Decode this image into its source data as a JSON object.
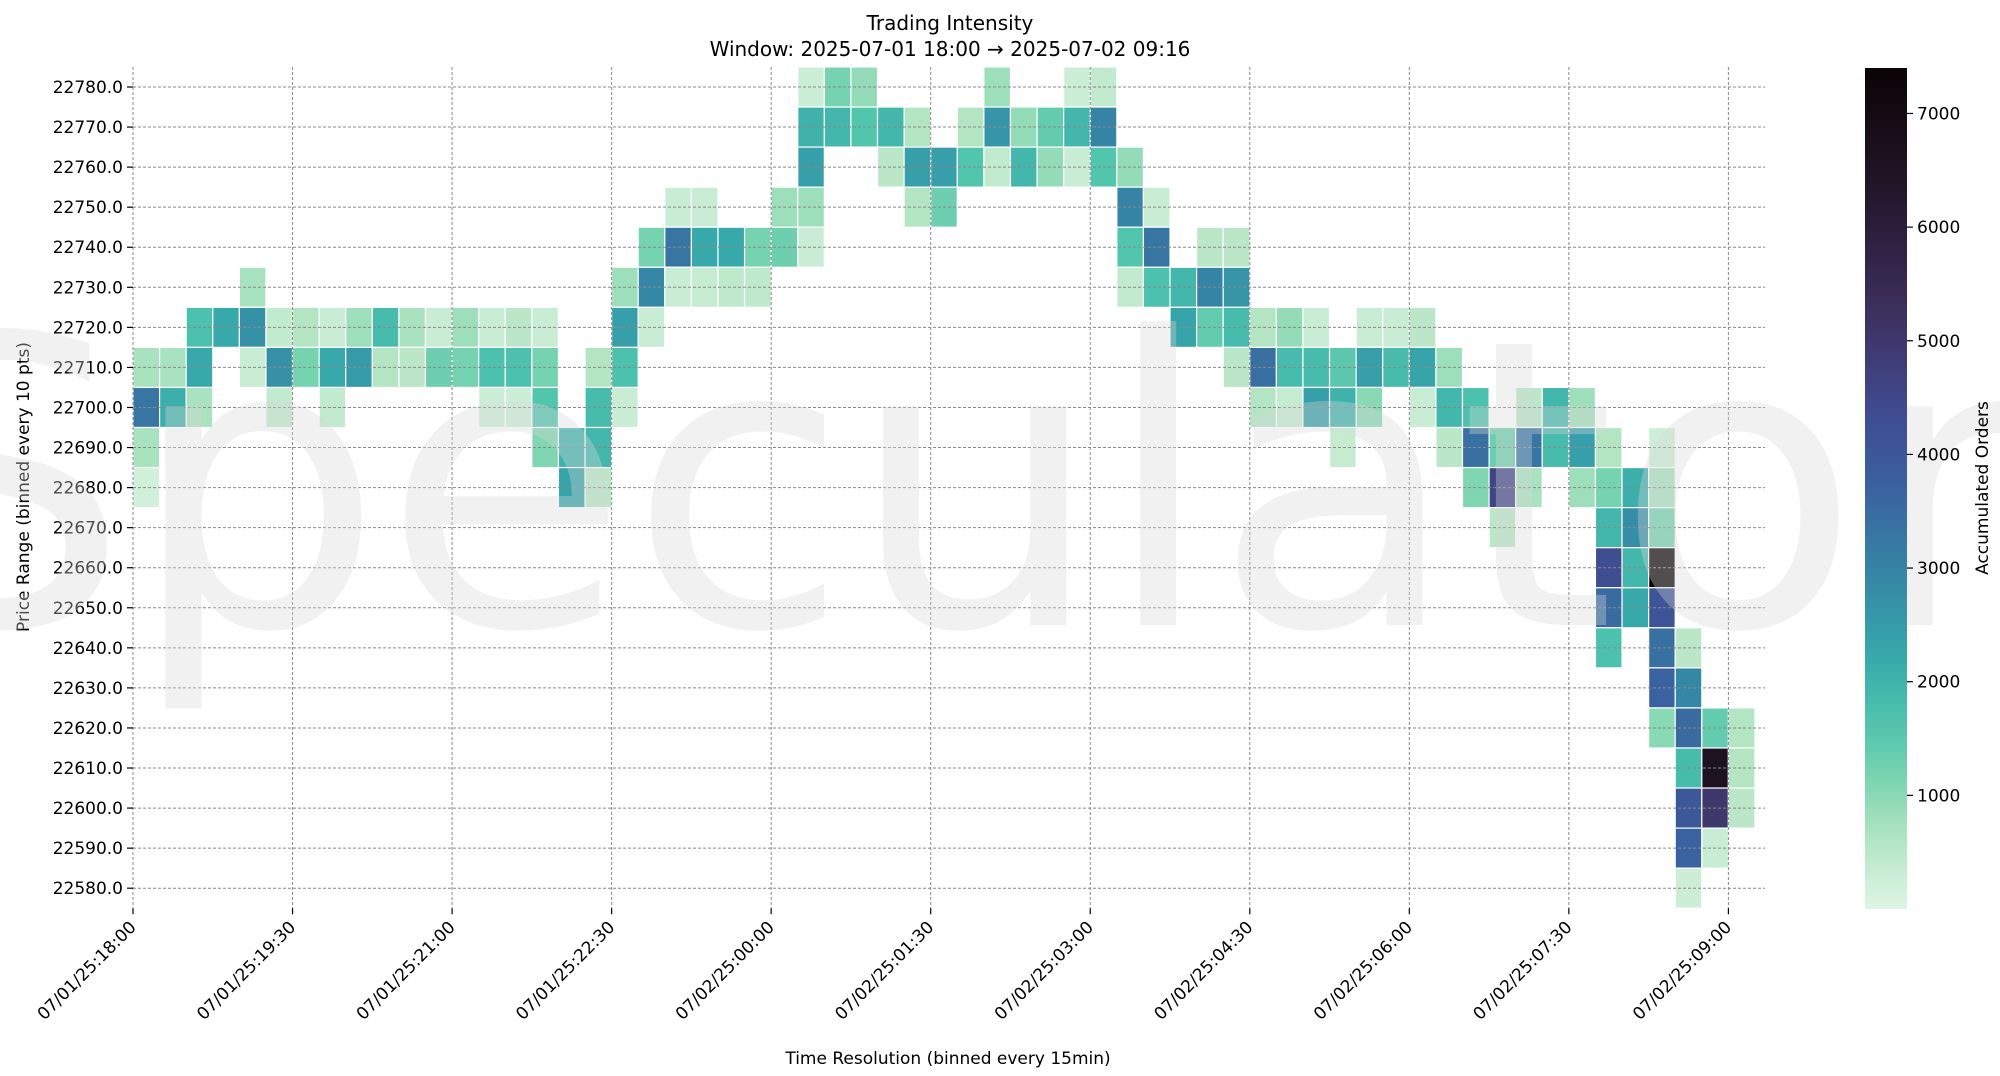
{
  "chart_data": {
    "type": "heatmap",
    "title": "Trading Intensity",
    "subtitle": "Window: 2025-07-01 18:00 → 2025-07-02 09:16",
    "xlabel": "Time Resolution (binned every 15min)",
    "ylabel": "Price Range (binned every 10 pts)",
    "colorbar_label": "Accumulated Orders",
    "watermark": "Speculator",
    "colormap": "mako_r",
    "value_range": [
      0,
      7400
    ],
    "colorbar_ticks": [
      1000,
      2000,
      3000,
      4000,
      5000,
      6000,
      7000
    ],
    "x_bin_minutes": 15,
    "x_bin_count": 61,
    "xticks": [
      {
        "bin": 0,
        "label": "07/01/25:18:00"
      },
      {
        "bin": 6,
        "label": "07/01/25:19:30"
      },
      {
        "bin": 12,
        "label": "07/01/25:21:00"
      },
      {
        "bin": 18,
        "label": "07/01/25:22:30"
      },
      {
        "bin": 24,
        "label": "07/02/25:00:00"
      },
      {
        "bin": 30,
        "label": "07/02/25:01:30"
      },
      {
        "bin": 36,
        "label": "07/02/25:03:00"
      },
      {
        "bin": 42,
        "label": "07/02/25:04:30"
      },
      {
        "bin": 48,
        "label": "07/02/25:06:00"
      },
      {
        "bin": 54,
        "label": "07/02/25:07:30"
      },
      {
        "bin": 60,
        "label": "07/02/25:09:00"
      }
    ],
    "yticks": [
      "22780.0",
      "22770.0",
      "22760.0",
      "22750.0",
      "22740.0",
      "22730.0",
      "22720.0",
      "22710.0",
      "22700.0",
      "22690.0",
      "22680.0",
      "22670.0",
      "22660.0",
      "22650.0",
      "22640.0",
      "22630.0",
      "22620.0",
      "22610.0",
      "22600.0",
      "22590.0",
      "22580.0"
    ],
    "y_range": [
      22580,
      22780
    ],
    "grid": true,
    "cells_format": [
      "time_bin",
      "price",
      "orders"
    ],
    "cells": [
      [
        0,
        22710,
        700
      ],
      [
        0,
        22700,
        3300
      ],
      [
        0,
        22690,
        700
      ],
      [
        0,
        22680,
        200
      ],
      [
        1,
        22710,
        700
      ],
      [
        1,
        22700,
        2100
      ],
      [
        2,
        22720,
        1700
      ],
      [
        2,
        22710,
        2200
      ],
      [
        2,
        22700,
        700
      ],
      [
        3,
        22720,
        2200
      ],
      [
        4,
        22730,
        700
      ],
      [
        4,
        22720,
        2700
      ],
      [
        4,
        22710,
        300
      ],
      [
        5,
        22720,
        400
      ],
      [
        5,
        22710,
        2700
      ],
      [
        5,
        22700,
        400
      ],
      [
        6,
        22720,
        600
      ],
      [
        6,
        22710,
        1200
      ],
      [
        7,
        22720,
        300
      ],
      [
        7,
        22710,
        2200
      ],
      [
        7,
        22700,
        400
      ],
      [
        8,
        22720,
        800
      ],
      [
        8,
        22710,
        2500
      ],
      [
        9,
        22720,
        1800
      ],
      [
        9,
        22710,
        600
      ],
      [
        10,
        22720,
        700
      ],
      [
        10,
        22710,
        500
      ],
      [
        11,
        22720,
        300
      ],
      [
        11,
        22710,
        1300
      ],
      [
        12,
        22720,
        800
      ],
      [
        12,
        22710,
        1200
      ],
      [
        13,
        22720,
        300
      ],
      [
        13,
        22710,
        1700
      ],
      [
        13,
        22700,
        250
      ],
      [
        14,
        22720,
        500
      ],
      [
        14,
        22710,
        1700
      ],
      [
        14,
        22700,
        250
      ],
      [
        15,
        22720,
        300
      ],
      [
        15,
        22710,
        1200
      ],
      [
        15,
        22700,
        1600
      ],
      [
        15,
        22690,
        1100
      ],
      [
        16,
        22690,
        2000
      ],
      [
        16,
        22680,
        2300
      ],
      [
        17,
        22710,
        600
      ],
      [
        17,
        22700,
        1800
      ],
      [
        17,
        22690,
        1900
      ],
      [
        17,
        22680,
        500
      ],
      [
        18,
        22730,
        800
      ],
      [
        18,
        22720,
        2400
      ],
      [
        18,
        22710,
        1700
      ],
      [
        18,
        22700,
        300
      ],
      [
        19,
        22740,
        1200
      ],
      [
        19,
        22730,
        2900
      ],
      [
        19,
        22720,
        300
      ],
      [
        20,
        22750,
        300
      ],
      [
        20,
        22740,
        3300
      ],
      [
        20,
        22730,
        300
      ],
      [
        21,
        22750,
        300
      ],
      [
        21,
        22740,
        2200
      ],
      [
        21,
        22730,
        350
      ],
      [
        22,
        22740,
        2200
      ],
      [
        22,
        22730,
        450
      ],
      [
        23,
        22740,
        1200
      ],
      [
        23,
        22730,
        450
      ],
      [
        24,
        22750,
        800
      ],
      [
        24,
        22740,
        1300
      ],
      [
        25,
        22780,
        250
      ],
      [
        25,
        22770,
        2000
      ],
      [
        25,
        22760,
        2400
      ],
      [
        25,
        22750,
        800
      ],
      [
        25,
        22740,
        300
      ],
      [
        26,
        22780,
        1200
      ],
      [
        26,
        22770,
        1900
      ],
      [
        27,
        22780,
        900
      ],
      [
        27,
        22770,
        1600
      ],
      [
        28,
        22770,
        1900
      ],
      [
        28,
        22760,
        500
      ],
      [
        29,
        22770,
        600
      ],
      [
        29,
        22760,
        2400
      ],
      [
        29,
        22750,
        600
      ],
      [
        30,
        22760,
        2400
      ],
      [
        30,
        22750,
        1300
      ],
      [
        31,
        22770,
        600
      ],
      [
        31,
        22760,
        1600
      ],
      [
        32,
        22780,
        800
      ],
      [
        32,
        22770,
        2600
      ],
      [
        32,
        22760,
        400
      ],
      [
        33,
        22770,
        900
      ],
      [
        33,
        22760,
        1900
      ],
      [
        34,
        22770,
        1400
      ],
      [
        34,
        22760,
        900
      ],
      [
        35,
        22780,
        250
      ],
      [
        35,
        22770,
        1900
      ],
      [
        35,
        22760,
        300
      ],
      [
        36,
        22780,
        400
      ],
      [
        36,
        22770,
        3000
      ],
      [
        36,
        22760,
        1600
      ],
      [
        37,
        22760,
        900
      ],
      [
        37,
        22750,
        3000
      ],
      [
        37,
        22740,
        1600
      ],
      [
        37,
        22730,
        400
      ],
      [
        38,
        22750,
        300
      ],
      [
        38,
        22740,
        3300
      ],
      [
        38,
        22730,
        1700
      ],
      [
        39,
        22730,
        1900
      ],
      [
        39,
        22720,
        2300
      ],
      [
        40,
        22740,
        500
      ],
      [
        40,
        22730,
        3000
      ],
      [
        40,
        22720,
        1400
      ],
      [
        41,
        22740,
        500
      ],
      [
        41,
        22730,
        2600
      ],
      [
        41,
        22720,
        1800
      ],
      [
        41,
        22710,
        500
      ],
      [
        42,
        22720,
        600
      ],
      [
        42,
        22710,
        3400
      ],
      [
        42,
        22700,
        600
      ],
      [
        43,
        22720,
        900
      ],
      [
        43,
        22710,
        1800
      ],
      [
        43,
        22700,
        350
      ],
      [
        44,
        22720,
        300
      ],
      [
        44,
        22710,
        1800
      ],
      [
        44,
        22700,
        2400
      ],
      [
        45,
        22710,
        1500
      ],
      [
        45,
        22700,
        2000
      ],
      [
        45,
        22690,
        350
      ],
      [
        46,
        22720,
        300
      ],
      [
        46,
        22710,
        2400
      ],
      [
        46,
        22700,
        1000
      ],
      [
        47,
        22720,
        300
      ],
      [
        47,
        22710,
        1800
      ],
      [
        48,
        22720,
        500
      ],
      [
        48,
        22710,
        2300
      ],
      [
        48,
        22700,
        300
      ],
      [
        49,
        22710,
        800
      ],
      [
        49,
        22700,
        1900
      ],
      [
        49,
        22690,
        500
      ],
      [
        50,
        22700,
        1700
      ],
      [
        50,
        22690,
        3400
      ],
      [
        50,
        22680,
        1100
      ],
      [
        51,
        22690,
        1300
      ],
      [
        51,
        22680,
        4600
      ],
      [
        51,
        22670,
        500
      ],
      [
        52,
        22700,
        500
      ],
      [
        52,
        22690,
        3300
      ],
      [
        52,
        22680,
        700
      ],
      [
        53,
        22700,
        1900
      ],
      [
        53,
        22690,
        1800
      ],
      [
        54,
        22700,
        800
      ],
      [
        54,
        22690,
        2400
      ],
      [
        54,
        22680,
        800
      ],
      [
        55,
        22690,
        600
      ],
      [
        55,
        22680,
        1200
      ],
      [
        55,
        22670,
        1900
      ],
      [
        55,
        22660,
        4300
      ],
      [
        55,
        22650,
        3500
      ],
      [
        55,
        22640,
        1700
      ],
      [
        56,
        22680,
        2100
      ],
      [
        56,
        22670,
        2800
      ],
      [
        56,
        22660,
        1900
      ],
      [
        56,
        22650,
        2200
      ],
      [
        57,
        22690,
        250
      ],
      [
        57,
        22680,
        700
      ],
      [
        57,
        22670,
        1200
      ],
      [
        57,
        22660,
        7400
      ],
      [
        57,
        22650,
        4100
      ],
      [
        57,
        22640,
        3400
      ],
      [
        57,
        22630,
        3700
      ],
      [
        57,
        22620,
        1000
      ],
      [
        58,
        22640,
        500
      ],
      [
        58,
        22630,
        2900
      ],
      [
        58,
        22620,
        3500
      ],
      [
        58,
        22610,
        1800
      ],
      [
        58,
        22600,
        4000
      ],
      [
        58,
        22590,
        3700
      ],
      [
        58,
        22580,
        250
      ],
      [
        59,
        22620,
        1400
      ],
      [
        59,
        22610,
        6600
      ],
      [
        59,
        22600,
        5000
      ],
      [
        59,
        22590,
        300
      ],
      [
        60,
        22620,
        600
      ],
      [
        60,
        22610,
        600
      ],
      [
        60,
        22600,
        500
      ]
    ]
  }
}
